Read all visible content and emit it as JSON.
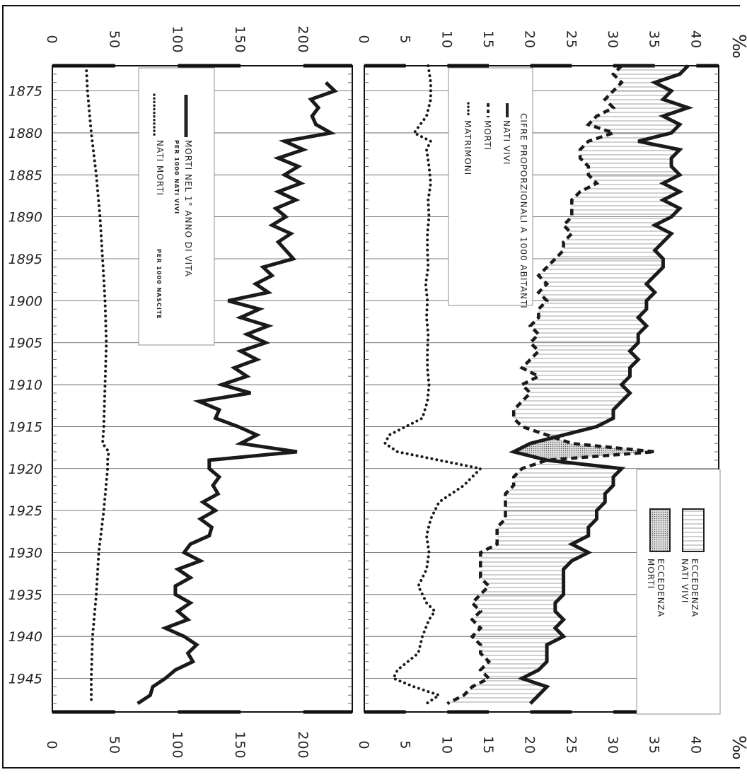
{
  "chart_data": [
    {
      "type": "line",
      "title": "",
      "xlabel": "",
      "ylabel": "",
      "ylim": [
        0,
        230
      ],
      "xlim": [
        1872,
        1949
      ],
      "legend": [
        "MORTI NEL 1° ANNO DI VITA",
        "PER 1000 NATI VIVI",
        "NATI MORTI",
        "PER 1000 NASCITE"
      ],
      "y_ticks": [
        "0",
        "50",
        "100",
        "150",
        "200"
      ],
      "x_ticks": [
        "1875",
        "1880",
        "1885",
        "1890",
        "1895",
        "1900",
        "1905",
        "1910",
        "1915",
        "1920",
        "1925",
        "1930",
        "1935",
        "1940",
        "1945"
      ],
      "series": [
        {
          "name": "MORTI NEL 1° ANNO DI VITA PER 1000 NATI VIVI",
          "style": "solid",
          "x": [
            1874,
            1875,
            1876,
            1877,
            1878,
            1879,
            1880,
            1881,
            1882,
            1883,
            1884,
            1885,
            1886,
            1887,
            1888,
            1889,
            1890,
            1891,
            1892,
            1893,
            1894,
            1895,
            1896,
            1897,
            1898,
            1899,
            1900,
            1901,
            1902,
            1903,
            1904,
            1905,
            1906,
            1907,
            1908,
            1909,
            1910,
            1911,
            1912,
            1913,
            1914,
            1915,
            1916,
            1917,
            1918,
            1919,
            1920,
            1921,
            1922,
            1923,
            1924,
            1925,
            1926,
            1927,
            1928,
            1929,
            1930,
            1931,
            1932,
            1933,
            1934,
            1935,
            1936,
            1937,
            1938,
            1939,
            1940,
            1941,
            1942,
            1943,
            1944,
            1945,
            1946,
            1947,
            1948
          ],
          "values": [
            218,
            225,
            206,
            212,
            207,
            210,
            222,
            185,
            200,
            180,
            196,
            185,
            198,
            180,
            194,
            178,
            186,
            175,
            190,
            180,
            186,
            192,
            168,
            175,
            162,
            172,
            140,
            165,
            150,
            172,
            155,
            170,
            150,
            163,
            145,
            155,
            135,
            158,
            117,
            133,
            130,
            148,
            163,
            150,
            195,
            125,
            125,
            133,
            128,
            132,
            120,
            130,
            118,
            127,
            125,
            110,
            105,
            118,
            100,
            110,
            98,
            98,
            110,
            100,
            108,
            90,
            105,
            115,
            108,
            112,
            98,
            90,
            80,
            78,
            68
          ]
        },
        {
          "name": "NATI MORTI PER 1000 NASCITE",
          "style": "dotted",
          "x": [
            1872,
            1875,
            1880,
            1885,
            1890,
            1895,
            1900,
            1905,
            1910,
            1915,
            1917,
            1918,
            1919,
            1920,
            1925,
            1930,
            1935,
            1940,
            1945,
            1948
          ],
          "values": [
            27,
            28,
            31,
            35,
            38,
            40,
            42,
            43,
            42,
            41,
            40,
            45,
            44,
            44,
            41,
            37,
            35,
            32,
            31,
            31
          ]
        }
      ]
    },
    {
      "type": "area",
      "title": "",
      "xlabel": "",
      "ylabel": "",
      "unit": "‰",
      "ylim": [
        0,
        42
      ],
      "xlim": [
        1872,
        1949
      ],
      "legend": [
        "CIFRE PROPORZIONALI A 1000 ABITANTI",
        "NATI VIVI",
        "MORTI",
        "MATRIMONI"
      ],
      "fill_legend": [
        {
          "line1": "ECCEDENZA",
          "line2": "NATI VIVI"
        },
        {
          "line1": "ECCEDENZA",
          "line2": "MORTI"
        }
      ],
      "y_ticks": [
        "0",
        "5",
        "10",
        "15",
        "20",
        "25",
        "30",
        "35",
        "40"
      ],
      "x_ticks": [
        "1875",
        "1880",
        "1885",
        "1890",
        "1895",
        "1900",
        "1905",
        "1910",
        "1915",
        "1920",
        "1925",
        "1930",
        "1935",
        "1940",
        "1945"
      ],
      "series": [
        {
          "name": "NATI VIVI",
          "style": "solid",
          "x": [
            1872,
            1873,
            1874,
            1875,
            1876,
            1877,
            1878,
            1879,
            1880,
            1881,
            1882,
            1883,
            1884,
            1885,
            1886,
            1887,
            1888,
            1889,
            1890,
            1891,
            1892,
            1893,
            1894,
            1895,
            1896,
            1897,
            1898,
            1899,
            1900,
            1901,
            1902,
            1903,
            1904,
            1905,
            1906,
            1907,
            1908,
            1909,
            1910,
            1911,
            1912,
            1913,
            1914,
            1915,
            1916,
            1917,
            1918,
            1919,
            1920,
            1921,
            1922,
            1923,
            1924,
            1925,
            1926,
            1927,
            1928,
            1929,
            1930,
            1931,
            1932,
            1933,
            1934,
            1935,
            1936,
            1937,
            1938,
            1939,
            1940,
            1941,
            1942,
            1943,
            1944,
            1945,
            1946,
            1947,
            1948
          ],
          "values": [
            39,
            38,
            35,
            37,
            36,
            39,
            36,
            38,
            37,
            33,
            38,
            37,
            37,
            38,
            36,
            38,
            36,
            38,
            37,
            35,
            37,
            36,
            35,
            36,
            36,
            35,
            34,
            35,
            34,
            34,
            33,
            34,
            33,
            33,
            32,
            33,
            32,
            32,
            31,
            32,
            31,
            30,
            30,
            28,
            24,
            20,
            18,
            22,
            31,
            30,
            30,
            29,
            29,
            28,
            28,
            27,
            27,
            25,
            27,
            25,
            24,
            24,
            24,
            24,
            23,
            23,
            24,
            23,
            24,
            22,
            22,
            22,
            21,
            19,
            22,
            21,
            20
          ]
        },
        {
          "name": "MORTI",
          "style": "dashed",
          "x": [
            1872,
            1873,
            1874,
            1875,
            1876,
            1877,
            1878,
            1879,
            1880,
            1881,
            1882,
            1883,
            1884,
            1885,
            1886,
            1887,
            1888,
            1889,
            1890,
            1891,
            1892,
            1893,
            1894,
            1895,
            1896,
            1897,
            1898,
            1899,
            1900,
            1901,
            1902,
            1903,
            1904,
            1905,
            1906,
            1907,
            1908,
            1909,
            1910,
            1911,
            1912,
            1913,
            1914,
            1915,
            1916,
            1917,
            1918,
            1919,
            1920,
            1921,
            1922,
            1923,
            1924,
            1925,
            1926,
            1927,
            1928,
            1929,
            1930,
            1931,
            1932,
            1933,
            1934,
            1935,
            1936,
            1937,
            1938,
            1939,
            1940,
            1941,
            1942,
            1943,
            1944,
            1945,
            1946,
            1947,
            1948
          ],
          "values": [
            31,
            30,
            31,
            30,
            29,
            30,
            28,
            27,
            30,
            27,
            26,
            26,
            27,
            27,
            28,
            26,
            25,
            25,
            25,
            24,
            25,
            24,
            24,
            23,
            22,
            21,
            22,
            21,
            22,
            21,
            21,
            20,
            21,
            20,
            21,
            20,
            19,
            21,
            19,
            20,
            19,
            18,
            18,
            19,
            22,
            25,
            35,
            22,
            19,
            18,
            18,
            17,
            17,
            17,
            17,
            16,
            16,
            16,
            14,
            14,
            14,
            14,
            15,
            14,
            13,
            14,
            13,
            14,
            13,
            14,
            14,
            15,
            14,
            15,
            13,
            12,
            10
          ]
        },
        {
          "name": "MATRIMONI",
          "style": "dotted",
          "x": [
            1872,
            1874,
            1876,
            1878,
            1880,
            1881,
            1882,
            1884,
            1886,
            1888,
            1890,
            1892,
            1894,
            1896,
            1898,
            1900,
            1902,
            1904,
            1906,
            1908,
            1910,
            1912,
            1914,
            1915,
            1916,
            1917,
            1918,
            1919,
            1920,
            1922,
            1924,
            1926,
            1928,
            1930,
            1932,
            1934,
            1936,
            1937,
            1938,
            1940,
            1942,
            1944,
            1945,
            1946,
            1947,
            1948
          ],
          "values": [
            7.7,
            8.0,
            8.0,
            7.5,
            6.0,
            8.0,
            7.5,
            7.8,
            8.0,
            7.7,
            7.8,
            7.6,
            7.6,
            7.7,
            7.4,
            7.6,
            7.5,
            7.7,
            7.6,
            7.6,
            7.8,
            7.6,
            7.0,
            5.0,
            3.0,
            2.5,
            4.0,
            9.0,
            14.0,
            12.0,
            9.0,
            8.0,
            7.5,
            7.8,
            7.5,
            6.5,
            7.5,
            8.5,
            7.8,
            7.0,
            6.5,
            4.0,
            3.5,
            6.0,
            9.0,
            7.5
          ]
        }
      ]
    }
  ]
}
